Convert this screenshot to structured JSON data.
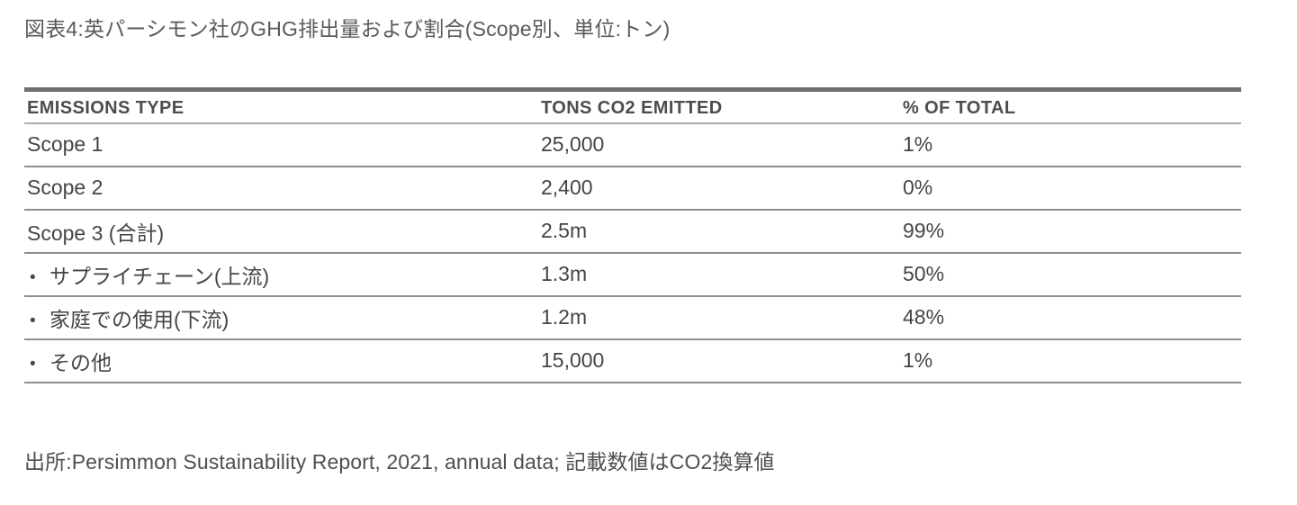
{
  "figure": {
    "title": "図表4:英パーシモン社のGHG排出量および割合(Scope別、単位:トン)",
    "source": "出所:Persimmon Sustainability Report, 2021, annual data; 記載数値はCO2換算値"
  },
  "table": {
    "headers": [
      "EMISSIONS TYPE",
      "TONS CO2 EMITTED",
      "% OF TOTAL"
    ],
    "bullet_char": "•",
    "rows": [
      {
        "type": "Scope 1",
        "tons": "25,000",
        "pct": "1%",
        "bullet": false
      },
      {
        "type": "Scope 2",
        "tons": "2,400",
        "pct": "0%",
        "bullet": false
      },
      {
        "type": "Scope 3 (合計)",
        "tons": "2.5m",
        "pct": "99%",
        "bullet": false
      },
      {
        "type": "サプライチェーン(上流)",
        "tons": "1.3m",
        "pct": "50%",
        "bullet": true
      },
      {
        "type": "家庭での使用(下流)",
        "tons": "1.2m",
        "pct": "48%",
        "bullet": true
      },
      {
        "type": "その他",
        "tons": "15,000",
        "pct": "1%",
        "bullet": true
      }
    ]
  },
  "colors": {
    "text": "#4a4a4a",
    "top_border": "#6f6f6f",
    "header_border": "#ababab",
    "row_border": "#8f8f8f",
    "background": "#ffffff"
  }
}
